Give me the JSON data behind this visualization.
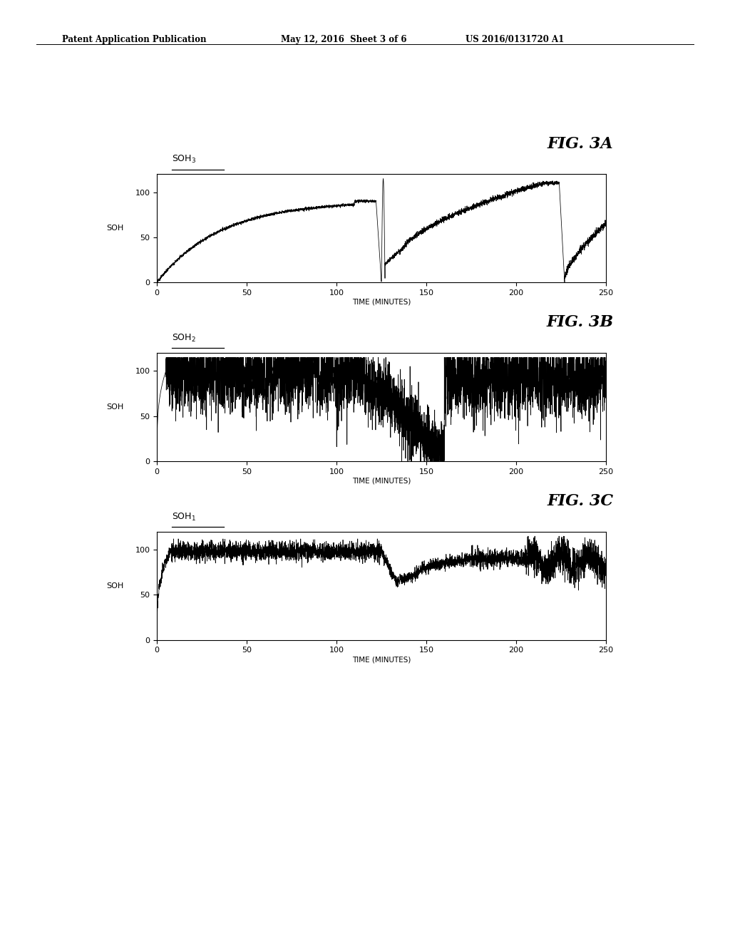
{
  "header_left": "Patent Application Publication",
  "header_mid": "May 12, 2016  Sheet 3 of 6",
  "header_right": "US 2016/0131720 A1",
  "fig_labels": [
    "FIG. 3A",
    "FIG. 3B",
    "FIG. 3C"
  ],
  "xlabel": "TIME (MINUTES)",
  "ylabel": "SOH",
  "xlim": [
    0,
    250
  ],
  "ylim": [
    0,
    120
  ],
  "yticks": [
    0,
    50,
    100
  ],
  "xticks": [
    0,
    50,
    100,
    150,
    200,
    250
  ],
  "bg_color": "#ffffff",
  "line_color": "#000000",
  "soh_subscripts": [
    "3",
    "2",
    "1"
  ]
}
